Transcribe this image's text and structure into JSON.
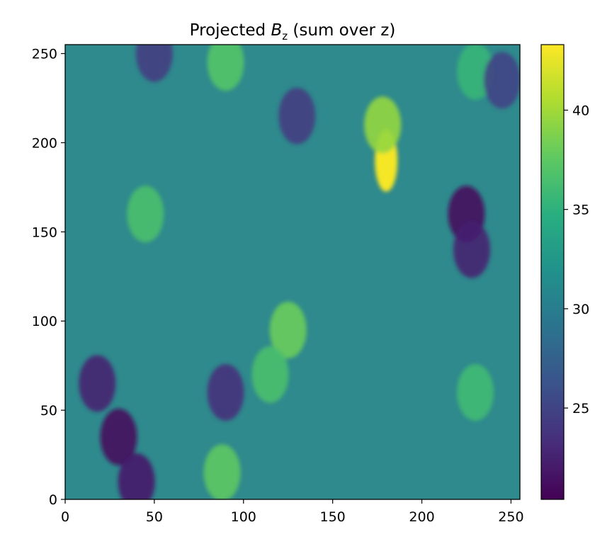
{
  "chart_data": {
    "type": "heatmap",
    "title_main": "Projected ",
    "title_var": "B",
    "title_sub": "z",
    "title_rest": " (sum over z)",
    "xlabel": "",
    "ylabel": "",
    "xlim": [
      0,
      255
    ],
    "ylim": [
      0,
      255
    ],
    "x_ticks": [
      0,
      50,
      100,
      150,
      200,
      250
    ],
    "y_ticks": [
      0,
      50,
      100,
      150,
      200,
      250
    ],
    "colorbar": {
      "colormap": "viridis",
      "range": [
        20.4,
        43.3
      ],
      "ticks": [
        25,
        30,
        35,
        40
      ]
    },
    "features": [
      {
        "x": 180,
        "y": 190,
        "value": 43.0
      },
      {
        "x": 178,
        "y": 210,
        "value": 39.5
      },
      {
        "x": 125,
        "y": 95,
        "value": 38.0
      },
      {
        "x": 115,
        "y": 70,
        "value": 36.5
      },
      {
        "x": 88,
        "y": 15,
        "value": 37.5
      },
      {
        "x": 90,
        "y": 245,
        "value": 37.0
      },
      {
        "x": 45,
        "y": 160,
        "value": 36.5
      },
      {
        "x": 230,
        "y": 60,
        "value": 36.0
      },
      {
        "x": 230,
        "y": 240,
        "value": 35.5
      },
      {
        "x": 225,
        "y": 160,
        "value": 21.0
      },
      {
        "x": 228,
        "y": 140,
        "value": 22.5
      },
      {
        "x": 30,
        "y": 35,
        "value": 21.0
      },
      {
        "x": 18,
        "y": 65,
        "value": 22.5
      },
      {
        "x": 40,
        "y": 10,
        "value": 22.0
      },
      {
        "x": 90,
        "y": 60,
        "value": 23.5
      },
      {
        "x": 130,
        "y": 215,
        "value": 24.5
      },
      {
        "x": 50,
        "y": 250,
        "value": 24.5
      },
      {
        "x": 245,
        "y": 235,
        "value": 25.0
      }
    ]
  }
}
